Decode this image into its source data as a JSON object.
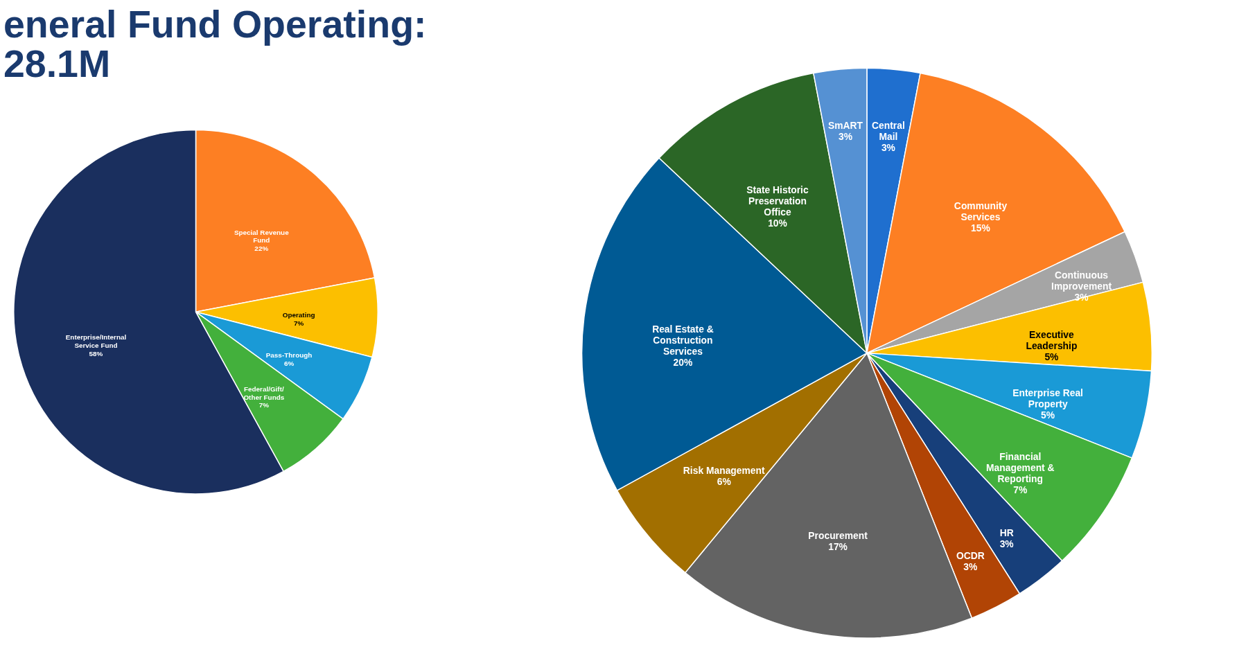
{
  "chart_data": [
    {
      "type": "pie",
      "title": [
        "eneral Fund Operating:",
        "28.1M"
      ],
      "value_labels": [
        "22%",
        "7%",
        "6%",
        "7%",
        "58%"
      ],
      "categories": [
        "Special Revenue Fund",
        "Operating",
        "Pass-Through",
        "Federal/Gift/ Other Funds",
        "Enterprise/Internal Service Fund"
      ],
      "values": [
        22,
        7,
        6,
        7,
        58
      ],
      "colors": [
        "#fd7f23",
        "#fcbf00",
        "#1a9ad6",
        "#43b03c",
        "#1a2f5e"
      ]
    },
    {
      "type": "pie",
      "value_labels": [
        "3%",
        "15%",
        "3%",
        "5%",
        "5%",
        "7%",
        "3%",
        "3%",
        "17%",
        "6%",
        "20%",
        "10%",
        "3%"
      ],
      "categories": [
        "Central Mail",
        "Community Services",
        "Continuous Improvement",
        "Executive Leadership",
        "Enterprise Real Property",
        "Financial Management & Reporting",
        "HR",
        "OCDR",
        "Procurement",
        "Risk Management",
        "Real Estate & Construction Services",
        "State Historic Preservation Office",
        "SmART"
      ],
      "values": [
        3,
        15,
        3,
        5,
        5,
        7,
        3,
        3,
        17,
        6,
        20,
        10,
        3
      ],
      "colors": [
        "#1f6fcf",
        "#fd7f23",
        "#a5a5a5",
        "#fcbf00",
        "#1a9ad6",
        "#43b03c",
        "#173f7a",
        "#b14405",
        "#636363",
        "#a26f00",
        "#005a94",
        "#2b6626",
        "#5591d3"
      ]
    }
  ]
}
